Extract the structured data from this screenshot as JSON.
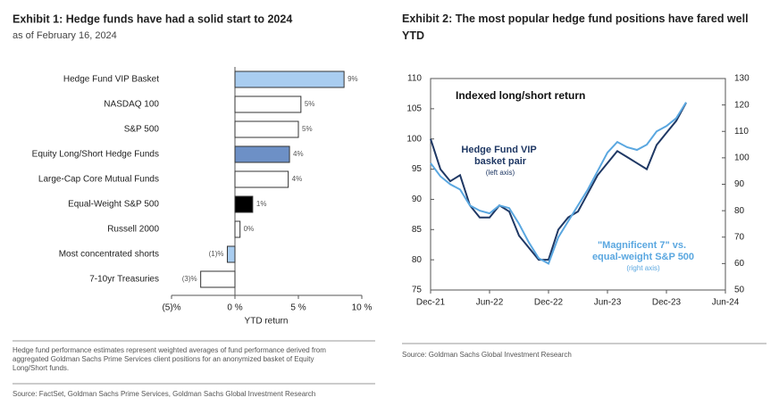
{
  "chart_data": [
    {
      "type": "barh",
      "title": "Exhibit 1: Hedge funds have had a solid start to 2024",
      "subtitle": "as of February 16, 2024",
      "categories": [
        "Hedge Fund VIP Basket",
        "NASDAQ 100",
        "S&P 500",
        "Equity Long/Short Hedge Funds",
        "Large-Cap Core Mutual Funds",
        "Equal-Weight S&P 500",
        "Russell 2000",
        "Most concentrated shorts",
        "7-10yr Treasuries"
      ],
      "values": [
        8.6,
        5.2,
        5.0,
        4.3,
        4.2,
        1.4,
        0.4,
        -0.6,
        -2.7
      ],
      "value_labels": [
        "9%",
        "5%",
        "5%",
        "4%",
        "4%",
        "1%",
        "0%",
        "(1)%",
        "(3)%"
      ],
      "colors": [
        "#a9cdf0",
        "#ffffff",
        "#ffffff",
        "#6d90c6",
        "#ffffff",
        "#000000",
        "#ffffff",
        "#a9cdf0",
        "#ffffff"
      ],
      "xlim": [
        -5,
        10
      ],
      "xticks": [
        {
          "value": -5,
          "label": "(5)%"
        },
        {
          "value": 0,
          "label": "0 %"
        },
        {
          "value": 5,
          "label": "5 %"
        },
        {
          "value": 10,
          "label": "10 %"
        }
      ],
      "xlabel": "YTD return",
      "footnote": "Hedge fund performance estimates represent weighted averages of fund performance derived from aggregated Goldman Sachs Prime Services client positions for an anonymized basket of Equity Long/Short funds.",
      "source": "Source: FactSet, Goldman Sachs Prime Services, Goldman Sachs Global Investment Research"
    },
    {
      "type": "line",
      "title": "Exhibit 2: The most popular hedge fund positions have fared well YTD",
      "annotation": "Indexed long/short return",
      "x": [
        "2021-12",
        "2022-01",
        "2022-02",
        "2022-03",
        "2022-04",
        "2022-05",
        "2022-06",
        "2022-07",
        "2022-08",
        "2022-09",
        "2022-10",
        "2022-11",
        "2022-12",
        "2023-01",
        "2023-02",
        "2023-03",
        "2023-04",
        "2023-05",
        "2023-06",
        "2023-07",
        "2023-08",
        "2023-09",
        "2023-10",
        "2023-11",
        "2023-12",
        "2024-01",
        "2024-02"
      ],
      "xlim": [
        "2021-12",
        "2024-06"
      ],
      "xticks": [
        {
          "value": "2021-12",
          "label": "Dec-21"
        },
        {
          "value": "2022-06",
          "label": "Jun-22"
        },
        {
          "value": "2022-12",
          "label": "Dec-22"
        },
        {
          "value": "2023-06",
          "label": "Jun-23"
        },
        {
          "value": "2023-12",
          "label": "Dec-23"
        },
        {
          "value": "2024-06",
          "label": "Jun-24"
        }
      ],
      "ylim": [
        75,
        110
      ],
      "yticks": [
        75,
        80,
        85,
        90,
        95,
        100,
        105,
        110
      ],
      "y2lim": [
        50,
        130
      ],
      "y2ticks": [
        50,
        60,
        70,
        80,
        90,
        100,
        110,
        120,
        130
      ],
      "series": [
        {
          "name": "Hedge Fund VIP basket pair",
          "note": "(left axis)",
          "color": "#1f3864",
          "axis": "y",
          "values": [
            100,
            95,
            93,
            94,
            89,
            87,
            87,
            89,
            88,
            84,
            82,
            80,
            80,
            85,
            87,
            88,
            91,
            94,
            96,
            98,
            97,
            96,
            95,
            99,
            101,
            103,
            106
          ]
        },
        {
          "name": "\"Magnificent 7\" vs. equal-weight S&P 500",
          "note": "(right axis)",
          "color": "#5aa7e0",
          "axis": "y2",
          "values": [
            98,
            93,
            90,
            88,
            82,
            80,
            79,
            82,
            81,
            75,
            68,
            62,
            60,
            70,
            76,
            82,
            88,
            95,
            102,
            106,
            104,
            103,
            105,
            110,
            112,
            115,
            121
          ]
        }
      ],
      "source": "Source: Goldman Sachs Global Investment Research"
    }
  ]
}
